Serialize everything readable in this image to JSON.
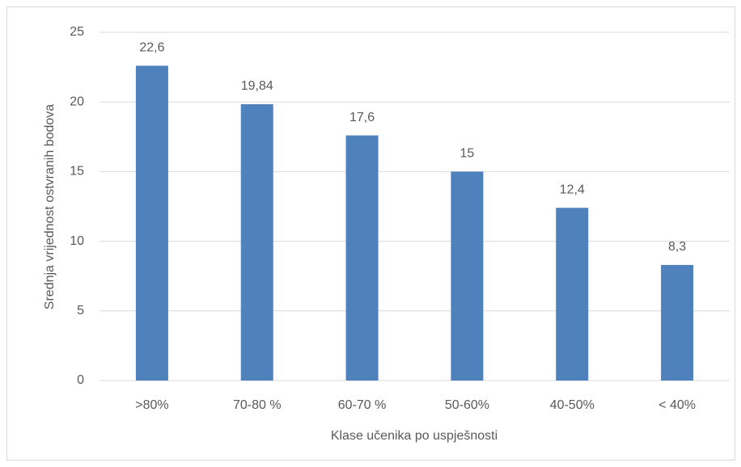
{
  "chart_data": {
    "type": "bar",
    "x_label": "Klase učenika po uspješnosti",
    "y_label": "Srednja vrijednost ostvranih bodova",
    "categories": [
      ">80%",
      "70-80 %",
      "60-70 %",
      "50-60%",
      "40-50%",
      "< 40%"
    ],
    "values": [
      22.6,
      19.84,
      17.6,
      15,
      12.4,
      8.3
    ],
    "value_labels": [
      "22,6",
      "19,84",
      "17,6",
      "15",
      "12,4",
      "8,3"
    ],
    "color": "#4f81bd",
    "ylim": [
      0,
      25
    ],
    "yticks": [
      0,
      5,
      10,
      15,
      20,
      25
    ],
    "grid": true
  }
}
